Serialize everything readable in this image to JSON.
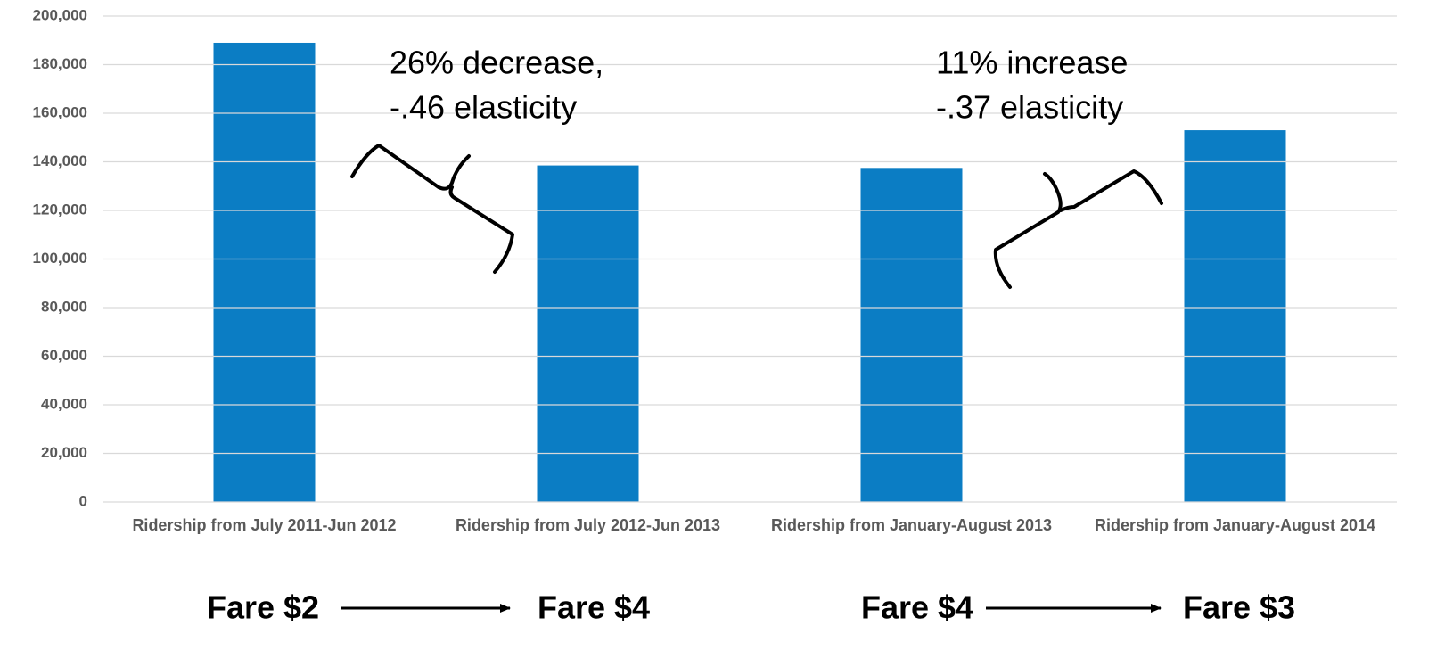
{
  "chart_data": {
    "type": "bar",
    "categories": [
      "Ridership from July 2011-Jun 2012",
      "Ridership from July 2012-Jun 2013",
      "Ridership from January-August 2013",
      "Ridership from January-August 2014"
    ],
    "values": [
      189000,
      138500,
      137500,
      153000
    ],
    "color": "#0b7dc4",
    "ylim": [
      0,
      200000
    ],
    "yticks": [
      0,
      {
        "value": 20000,
        "label": "20,000"
      },
      {
        "value": 40000,
        "label": "40,000"
      },
      {
        "value": 60000,
        "label": "60,000"
      },
      {
        "value": 80000,
        "label": "80,000"
      },
      {
        "value": 100000,
        "label": "100,000"
      },
      {
        "value": 120000,
        "label": "120,000"
      },
      {
        "value": 140000,
        "label": "140,000"
      },
      {
        "value": 160000,
        "label": "160,000"
      },
      {
        "value": 180000,
        "label": "180,000"
      },
      {
        "value": 200000,
        "label": "200,000"
      }
    ],
    "grid": true,
    "annotations": [
      {
        "lines": [
          "26% decrease,",
          "-.46 elasticity"
        ]
      },
      {
        "lines": [
          "11% increase",
          "-.37 elasticity"
        ]
      }
    ],
    "fare_labels": [
      "Fare $2",
      "Fare $4",
      "Fare $4",
      "Fare $3"
    ]
  }
}
